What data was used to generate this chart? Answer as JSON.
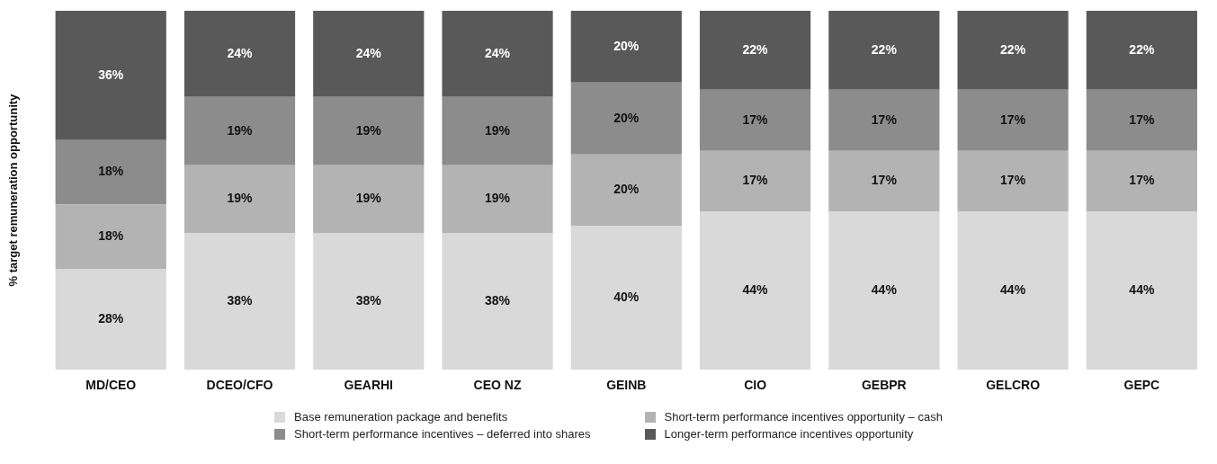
{
  "chart_data": {
    "type": "bar",
    "stacked": true,
    "ylabel": "% target remuneration opportunity",
    "categories": [
      "MD/CEO",
      "DCEO/CFO",
      "GEARHI",
      "CEO NZ",
      "GEINB",
      "CIO",
      "GEBPR",
      "GELCRO",
      "GEPC"
    ],
    "series": [
      {
        "name": "Base remuneration package and benefits",
        "color": "#d9d9d9",
        "values": [
          28,
          38,
          38,
          38,
          40,
          44,
          44,
          44,
          44
        ],
        "value_labels": [
          "28%",
          "38%",
          "38%",
          "38%",
          "40%",
          "44%",
          "44%",
          "44%",
          "44%"
        ]
      },
      {
        "name": "Short-term performance incentives opportunity – cash",
        "color": "#b3b3b3",
        "values": [
          18,
          19,
          19,
          19,
          20,
          17,
          17,
          17,
          17
        ],
        "value_labels": [
          "18%",
          "19%",
          "19%",
          "19%",
          "20%",
          "17%",
          "17%",
          "17%",
          "17%"
        ]
      },
      {
        "name": "Short-term performance incentives – deferred into shares",
        "color": "#8c8c8c",
        "values": [
          18,
          19,
          19,
          19,
          20,
          17,
          17,
          17,
          17
        ],
        "value_labels": [
          "18%",
          "19%",
          "19%",
          "19%",
          "20%",
          "17%",
          "17%",
          "17%",
          "17%"
        ]
      },
      {
        "name": "Longer-term performance incentives opportunity",
        "color": "#595959",
        "values": [
          36,
          24,
          24,
          24,
          20,
          22,
          22,
          22,
          22
        ],
        "value_labels": [
          "36%",
          "24%",
          "24%",
          "24%",
          "20%",
          "22%",
          "22%",
          "22%",
          "22%"
        ]
      }
    ],
    "legend": "bottom",
    "grid": false,
    "tick_labels": "x"
  }
}
